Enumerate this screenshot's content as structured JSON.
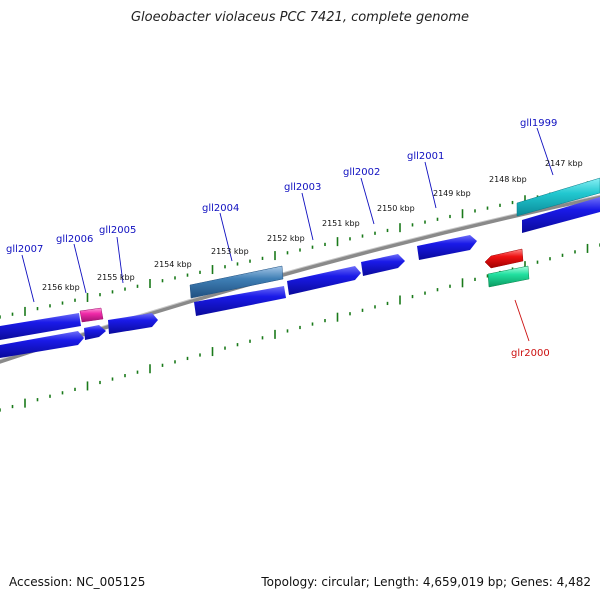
{
  "title": "Gloeobacter violaceus PCC 7421, complete genome",
  "footer": {
    "accession": "Accession: NC_005125",
    "summary": "Topology: circular; Length: 4,659,019 bp; Genes: 4,482"
  },
  "colors": {
    "backbone": "#8a8a8a",
    "ticks": "#1a7a1a",
    "forward_label": "#1010c0",
    "reverse_label": "#cc1010"
  },
  "scale_labels": [
    "2147 kbp",
    "2148 kbp",
    "2149 kbp",
    "2150 kbp",
    "2151 kbp",
    "2152 kbp",
    "2153 kbp",
    "2154 kbp",
    "2155 kbp",
    "2156 kbp"
  ],
  "gene_labels": [
    {
      "text": "gll1999",
      "strand": "forward"
    },
    {
      "text": "gll2001",
      "strand": "forward"
    },
    {
      "text": "gll2002",
      "strand": "forward"
    },
    {
      "text": "gll2003",
      "strand": "forward"
    },
    {
      "text": "gll2004",
      "strand": "forward"
    },
    {
      "text": "gll2005",
      "strand": "forward"
    },
    {
      "text": "gll2006",
      "strand": "forward"
    },
    {
      "text": "gll2007",
      "strand": "forward"
    },
    {
      "text": "glr2000",
      "strand": "reverse"
    }
  ],
  "features": [
    {
      "name": "gll1999",
      "color": "#22c8d0"
    },
    {
      "name": "gll2006",
      "color": "#f02aa8"
    },
    {
      "name": "gll2004",
      "color": "#3f7fb5"
    },
    {
      "name": "glr2000-upper",
      "color": "#ee1111"
    },
    {
      "name": "glr2000-lower",
      "color": "#22e0a0"
    },
    {
      "name": "cds",
      "color": "#1212e0"
    }
  ]
}
